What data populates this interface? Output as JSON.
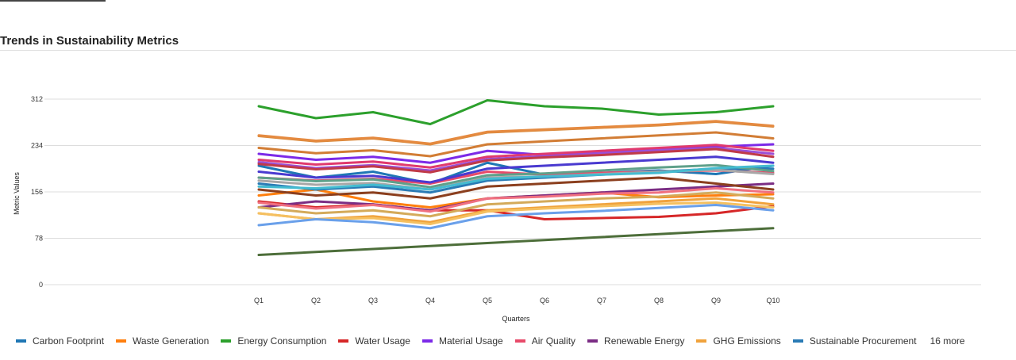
{
  "page": {
    "title": "Trends in Sustainability Metrics"
  },
  "legend": {
    "visible": [
      "Carbon Footprint",
      "Waste Generation",
      "Energy Consumption",
      "Water Usage",
      "Material Usage",
      "Air Quality",
      "Renewable Energy",
      "GHG Emissions",
      "Sustainable Procurement"
    ],
    "more_label": "16 more"
  },
  "chart_data": {
    "type": "line",
    "xlabel": "Quarters",
    "ylabel": "Metric Values",
    "categories": [
      "Q1",
      "Q2",
      "Q3",
      "Q4",
      "Q5",
      "Q6",
      "Q7",
      "Q8",
      "Q9",
      "Q10"
    ],
    "yticks": [
      0,
      78,
      156,
      234,
      312
    ],
    "ylim": [
      0,
      312
    ],
    "grid": true,
    "legend_position": "bottom",
    "series": [
      {
        "name": "Carbon Footprint",
        "color": "#1f77b4",
        "values": [
          200,
          180,
          190,
          170,
          205,
          185,
          188,
          192,
          186,
          200
        ]
      },
      {
        "name": "Waste Generation",
        "color": "#ff7f0e",
        "values": [
          150,
          160,
          140,
          130,
          145,
          150,
          155,
          147,
          150,
          152
        ]
      },
      {
        "name": "Energy Consumption",
        "color": "#2ca02c",
        "values": [
          300,
          280,
          290,
          270,
          310,
          300,
          296,
          286,
          290,
          300
        ]
      },
      {
        "name": "Water Usage",
        "color": "#d62728",
        "values": [
          140,
          130,
          135,
          125,
          125,
          110,
          112,
          114,
          120,
          132
        ]
      },
      {
        "name": "Material Usage",
        "color": "#7c2ae8",
        "values": [
          220,
          210,
          215,
          205,
          225,
          218,
          222,
          228,
          232,
          236
        ]
      },
      {
        "name": "Air Quality",
        "color": "#e84b6a",
        "values": [
          180,
          175,
          178,
          170,
          190,
          185,
          188,
          190,
          192,
          188
        ]
      },
      {
        "name": "Renewable Energy",
        "color": "#7b2d84",
        "values": [
          130,
          140,
          135,
          125,
          145,
          150,
          155,
          160,
          165,
          170
        ]
      },
      {
        "name": "GHG Emissions",
        "color": "#f0a23c",
        "values": [
          120,
          110,
          115,
          105,
          125,
          130,
          135,
          140,
          145,
          135
        ]
      },
      {
        "name": "Sustainable Procurement",
        "color": "#2a7bb5",
        "values": [
          170,
          160,
          165,
          155,
          175,
          180,
          185,
          190,
          195,
          195
        ]
      },
      {
        "name": "",
        "color": "#d88a3c",
        "values": [
          250,
          241,
          246,
          236,
          256,
          260,
          264,
          268,
          274,
          266
        ]
      },
      {
        "name": "",
        "color": "#e58a40",
        "values": [
          251,
          242,
          247,
          237,
          257,
          261,
          265,
          269,
          275,
          267
        ]
      },
      {
        "name": "",
        "color": "#d27d35",
        "values": [
          230,
          221,
          226,
          216,
          236,
          241,
          246,
          251,
          256,
          246
        ]
      },
      {
        "name": "",
        "color": "#e03a6e",
        "values": [
          210,
          202,
          207,
          197,
          215,
          220,
          225,
          230,
          235,
          225
        ]
      },
      {
        "name": "",
        "color": "#9b4fd6",
        "values": [
          206,
          196,
          201,
          192,
          211,
          216,
          221,
          226,
          230,
          220
        ]
      },
      {
        "name": "",
        "color": "#c03a48",
        "values": [
          203,
          194,
          199,
          189,
          209,
          214,
          218,
          223,
          228,
          215
        ]
      },
      {
        "name": "",
        "color": "#4a3ad0",
        "values": [
          190,
          180,
          183,
          172,
          195,
          200,
          205,
          210,
          215,
          205
        ]
      },
      {
        "name": "",
        "color": "#5fa08a",
        "values": [
          180,
          174,
          177,
          164,
          184,
          187,
          192,
          197,
          201,
          191
        ]
      },
      {
        "name": "",
        "color": "#a7a7a7",
        "values": [
          175,
          168,
          171,
          160,
          180,
          182,
          186,
          190,
          193,
          186
        ]
      },
      {
        "name": "",
        "color": "#8b3f1e",
        "values": [
          160,
          150,
          155,
          145,
          165,
          170,
          175,
          180,
          170,
          160
        ]
      },
      {
        "name": "",
        "color": "#f07080",
        "values": [
          138,
          128,
          134,
          123,
          145,
          148,
          153,
          155,
          162,
          155
        ]
      },
      {
        "name": "",
        "color": "#d4aa5a",
        "values": [
          130,
          120,
          125,
          115,
          135,
          140,
          145,
          148,
          155,
          145
        ]
      },
      {
        "name": "",
        "color": "#f5c060",
        "values": [
          120,
          110,
          112,
          102,
          123,
          128,
          132,
          136,
          138,
          130
        ]
      },
      {
        "name": "",
        "color": "#6aa0ea",
        "values": [
          100,
          110,
          105,
          95,
          115,
          120,
          124,
          129,
          134,
          125
        ]
      },
      {
        "name": "",
        "color": "#44bbd0",
        "values": [
          165,
          162,
          168,
          160,
          178,
          182,
          185,
          188,
          196,
          200
        ]
      },
      {
        "name": "",
        "color": "#4d6e3a",
        "values": [
          50,
          55,
          60,
          65,
          70,
          75,
          80,
          85,
          90,
          95
        ]
      }
    ]
  }
}
